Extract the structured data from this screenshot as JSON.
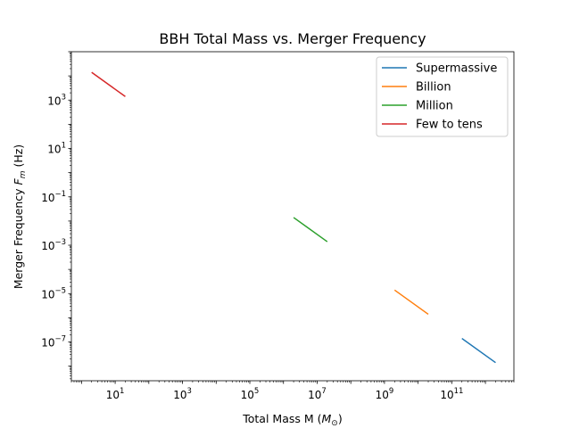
{
  "chart_data": {
    "type": "line",
    "title": "BBH Total Mass vs. Merger Frequency",
    "xlabel": "Total Mass M (",
    "xlabel_unit": "M",
    "xlabel_unit_sub": "⊙",
    "xlabel_close": ")",
    "ylabel": "Merger Frequency ",
    "ylabel_var": "F",
    "ylabel_var_sub": "m",
    "ylabel_unit": " (Hz)",
    "xscale": "log",
    "yscale": "log",
    "xlim": [
      0.5,
      7000000000000.0
    ],
    "ylim": [
      2.5e-09,
      100000.0
    ],
    "x_ticks": [
      {
        "value": 10,
        "base": "10",
        "exp": "1"
      },
      {
        "value": 1000,
        "base": "10",
        "exp": "3"
      },
      {
        "value": 100000,
        "base": "10",
        "exp": "5"
      },
      {
        "value": 10000000,
        "base": "10",
        "exp": "7"
      },
      {
        "value": 1000000000,
        "base": "10",
        "exp": "9"
      },
      {
        "value": 100000000000,
        "base": "10",
        "exp": "11"
      }
    ],
    "y_ticks": [
      {
        "value": 1e-07,
        "base": "10",
        "exp": "−7"
      },
      {
        "value": 1e-05,
        "base": "10",
        "exp": "−5"
      },
      {
        "value": 0.001,
        "base": "10",
        "exp": "−3"
      },
      {
        "value": 0.1,
        "base": "10",
        "exp": "−1"
      },
      {
        "value": 10,
        "base": "10",
        "exp": "1"
      },
      {
        "value": 1000,
        "base": "10",
        "exp": "3"
      }
    ],
    "grid": false,
    "legend_position": "top-right",
    "series": [
      {
        "name": "Supermassive",
        "color": "#1f77b4",
        "x": [
          200000000000.0,
          2000000000000.0
        ],
        "y": [
          1.4e-07,
          1.4e-08
        ]
      },
      {
        "name": "Billion",
        "color": "#ff7f0e",
        "x": [
          2000000000.0,
          20000000000.0
        ],
        "y": [
          1.4e-05,
          1.4e-06
        ]
      },
      {
        "name": "Million",
        "color": "#2ca02c",
        "x": [
          2000000.0,
          20000000.0
        ],
        "y": [
          0.014,
          0.0014
        ]
      },
      {
        "name": "Few to tens",
        "color": "#d62728",
        "x": [
          2,
          20
        ],
        "y": [
          14000,
          1400
        ]
      }
    ]
  }
}
